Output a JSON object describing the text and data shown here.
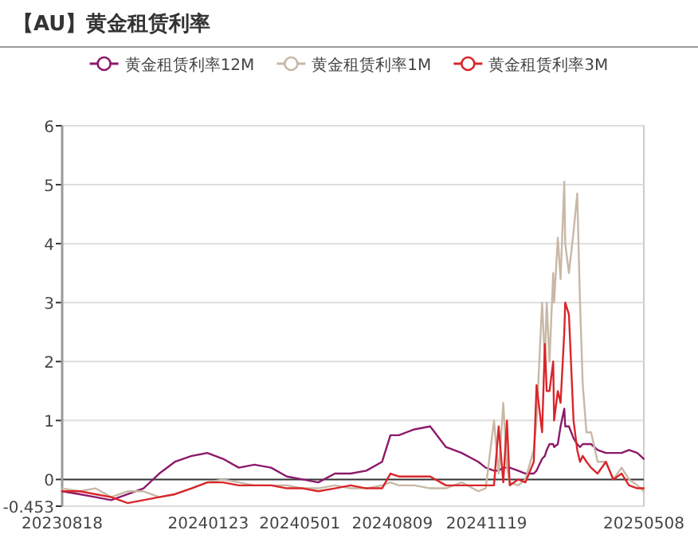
{
  "chart_data": {
    "type": "line",
    "title": "【AU】黄金租赁利率",
    "x": [
      "2023-08-18",
      "2023-09-06",
      "2023-09-23",
      "2023-10-10",
      "2023-10-28",
      "2023-11-14",
      "2023-12-01",
      "2023-12-18",
      "2024-01-05",
      "2024-01-22",
      "2024-02-08",
      "2024-02-25",
      "2024-03-13",
      "2024-03-31",
      "2024-04-17",
      "2024-05-04",
      "2024-05-21",
      "2024-06-08",
      "2024-06-25",
      "2024-07-12",
      "2024-07-29",
      "2024-08-07",
      "2024-08-16",
      "2024-09-02",
      "2024-09-19",
      "2024-10-06",
      "2024-10-23",
      "2024-11-10",
      "2024-11-18",
      "2024-11-27",
      "2024-12-02",
      "2024-12-07",
      "2024-12-11",
      "2024-12-14",
      "2024-12-23",
      "2024-12-31",
      "2025-01-09",
      "2025-01-12",
      "2025-01-18",
      "2025-01-21",
      "2025-01-23",
      "2025-01-26",
      "2025-01-30",
      "2025-01-31",
      "2025-02-04",
      "2025-02-07",
      "2025-02-11",
      "2025-02-12",
      "2025-02-16",
      "2025-02-21",
      "2025-02-25",
      "2025-02-28",
      "2025-03-03",
      "2025-03-07",
      "2025-03-12",
      "2025-03-19",
      "2025-03-28",
      "2025-04-05",
      "2025-04-14",
      "2025-04-22",
      "2025-05-01",
      "2025-05-08"
    ],
    "series": [
      {
        "name": "黄金租赁利率12M",
        "color": "#8b1a6b",
        "values": [
          -0.2,
          -0.25,
          -0.3,
          -0.35,
          -0.25,
          -0.15,
          0.1,
          0.3,
          0.4,
          0.45,
          0.35,
          0.2,
          0.25,
          0.2,
          0.05,
          0.0,
          -0.05,
          0.1,
          0.1,
          0.15,
          0.3,
          0.75,
          0.75,
          0.85,
          0.9,
          0.55,
          0.45,
          0.3,
          0.2,
          0.15,
          0.15,
          0.2,
          0.2,
          0.2,
          0.15,
          0.1,
          0.1,
          0.15,
          0.35,
          0.4,
          0.5,
          0.6,
          0.6,
          0.55,
          0.6,
          0.9,
          1.2,
          0.9,
          0.9,
          0.7,
          0.6,
          0.55,
          0.6,
          0.6,
          0.6,
          0.5,
          0.45,
          0.45,
          0.45,
          0.5,
          0.45,
          0.35
        ]
      },
      {
        "name": "黄金租赁利率1M",
        "color": "#c8b8a6",
        "values": [
          -0.15,
          -0.2,
          -0.15,
          -0.3,
          -0.2,
          -0.2,
          -0.3,
          -0.25,
          -0.15,
          -0.05,
          0.0,
          -0.05,
          -0.1,
          -0.1,
          -0.1,
          -0.15,
          -0.15,
          -0.1,
          -0.15,
          -0.15,
          -0.1,
          -0.05,
          -0.1,
          -0.1,
          -0.15,
          -0.15,
          -0.05,
          -0.2,
          -0.15,
          1.0,
          0.1,
          1.3,
          0.2,
          -0.05,
          -0.1,
          0.0,
          0.5,
          1.0,
          3.0,
          2.0,
          3.0,
          2.0,
          3.5,
          3.0,
          4.1,
          3.4,
          5.05,
          4.0,
          3.5,
          4.2,
          4.85,
          3.0,
          1.6,
          0.8,
          0.8,
          0.3,
          0.3,
          0.0,
          0.2,
          0.0,
          -0.1,
          -0.2
        ]
      },
      {
        "name": "黄金租赁利率3M",
        "color": "#d9262b",
        "values": [
          -0.2,
          -0.2,
          -0.25,
          -0.3,
          -0.4,
          -0.35,
          -0.3,
          -0.25,
          -0.15,
          -0.05,
          -0.05,
          -0.1,
          -0.1,
          -0.1,
          -0.15,
          -0.15,
          -0.2,
          -0.15,
          -0.1,
          -0.15,
          -0.15,
          0.1,
          0.05,
          0.05,
          0.05,
          -0.1,
          -0.1,
          -0.1,
          -0.1,
          -0.1,
          0.9,
          -0.05,
          1.0,
          -0.1,
          0.0,
          -0.05,
          0.3,
          1.6,
          0.8,
          2.3,
          1.5,
          1.5,
          2.0,
          1.0,
          1.5,
          1.3,
          2.5,
          3.0,
          2.8,
          1.0,
          0.5,
          0.3,
          0.4,
          0.3,
          0.2,
          0.1,
          0.3,
          0.0,
          0.1,
          -0.1,
          -0.15,
          -0.15
        ]
      }
    ],
    "xlim": [
      "2023-08-18",
      "2025-05-08"
    ],
    "xticks": [
      {
        "value": "2023-08-18",
        "label": "20230818"
      },
      {
        "value": "2024-01-23",
        "label": "20240123"
      },
      {
        "value": "2024-05-01",
        "label": "20240501"
      },
      {
        "value": "2024-08-09",
        "label": "20240809"
      },
      {
        "value": "2024-11-19",
        "label": "20241119"
      },
      {
        "value": "2025-05-08",
        "label": "20250508"
      }
    ],
    "ylim": [
      -0.453,
      6
    ],
    "yticks": [
      -0.453,
      0,
      1,
      2,
      3,
      4,
      5,
      6
    ],
    "grid": "y",
    "legend": "top"
  }
}
